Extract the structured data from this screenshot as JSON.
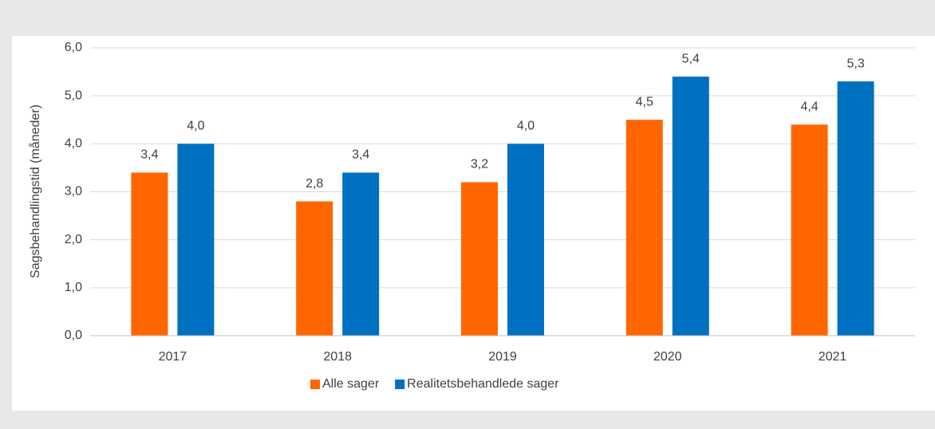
{
  "chart_data": {
    "type": "bar",
    "ylabel": "Sagsbehandlingstid (måneder)",
    "categories": [
      "2017",
      "2018",
      "2019",
      "2020",
      "2021"
    ],
    "series": [
      {
        "name": "Alle sager",
        "color": "#ff6600",
        "values": [
          3.4,
          2.8,
          3.2,
          4.5,
          4.4
        ],
        "value_labels": [
          "3,4",
          "2,8",
          "3,2",
          "4,5",
          "4,4"
        ]
      },
      {
        "name": "Realitetsbehandlede sager",
        "color": "#0070c0",
        "values": [
          4.0,
          3.4,
          4.0,
          5.4,
          5.3
        ],
        "value_labels": [
          "4,0",
          "3,4",
          "4,0",
          "5,4",
          "5,3"
        ]
      }
    ],
    "ylim": [
      0,
      6
    ],
    "yticks": [
      {
        "value": 0,
        "label": "0,0"
      },
      {
        "value": 1,
        "label": "1,0"
      },
      {
        "value": 2,
        "label": "2,0"
      },
      {
        "value": 3,
        "label": "3,0"
      },
      {
        "value": 4,
        "label": "4,0"
      },
      {
        "value": 5,
        "label": "5,0"
      },
      {
        "value": 6,
        "label": "6,0"
      }
    ],
    "grid": true,
    "legend": "bottom"
  }
}
